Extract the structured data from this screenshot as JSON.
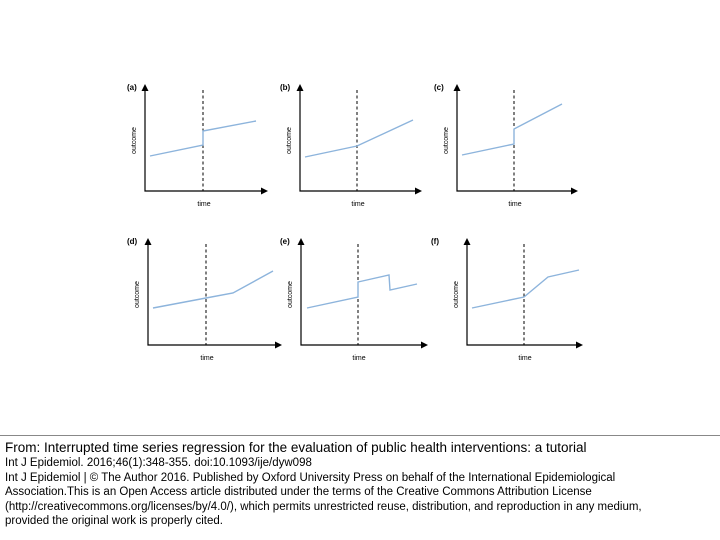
{
  "figure": {
    "panels": [
      {
        "label": "(a)",
        "xlabel": "time",
        "ylabel": "outcome"
      },
      {
        "label": "(b)",
        "xlabel": "time",
        "ylabel": "outcome"
      },
      {
        "label": "(c)",
        "xlabel": "time",
        "ylabel": "outcome"
      },
      {
        "label": "(d)",
        "xlabel": "time",
        "ylabel": "outcome"
      },
      {
        "label": "(e)",
        "xlabel": "time",
        "ylabel": "outcome"
      },
      {
        "label": "(f)",
        "xlabel": "time",
        "ylabel": "outcome"
      }
    ],
    "colors": {
      "trend_line": "#8db4dc",
      "axes": "#000000",
      "intervention_line": "#000000"
    }
  },
  "caption": {
    "from_line": "From: Interrupted time series regression for the evaluation of public health interventions: a tutorial",
    "citation": "Int J Epidemiol. 2016;46(1):348-355. doi:10.1093/ije/dyw098",
    "license_lines": [
      "Int J Epidemiol | © The Author 2016. Published by Oxford University Press on behalf of the International Epidemiological",
      "Association.This is an Open Access article distributed under the terms of the Creative Commons Attribution License",
      "(http://creativecommons.org/licenses/by/4.0/), which permits unrestricted reuse, distribution, and reproduction in any medium,",
      "provided the original work is properly cited."
    ]
  }
}
